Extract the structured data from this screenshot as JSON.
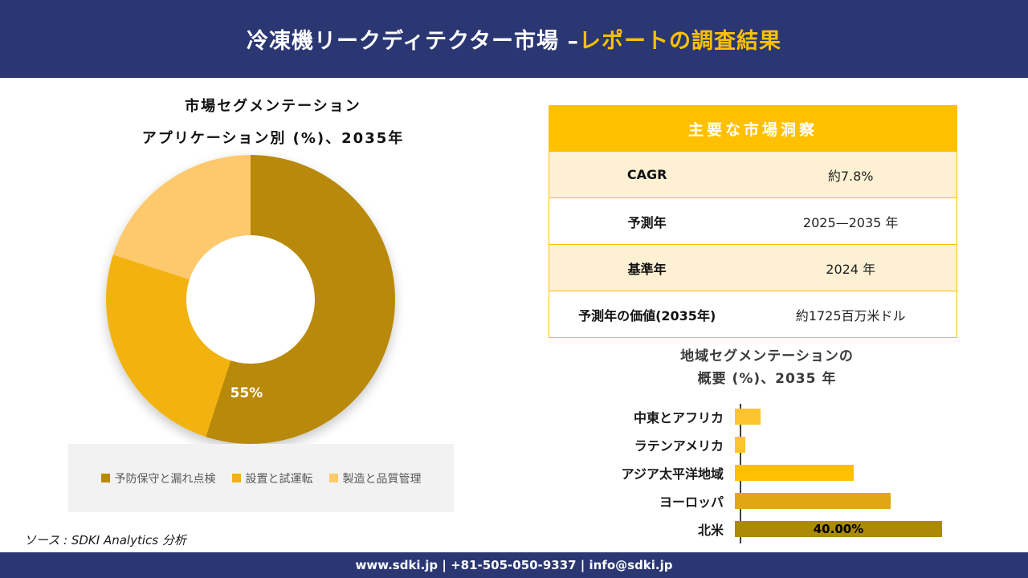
{
  "header": {
    "title_main": "冷凍機リークディテクター市場 –",
    "title_accent": "レポートの調査結果"
  },
  "colors": {
    "navy": "#2A3773",
    "gold": "#FFC000",
    "cream_row": "#FDF0D3",
    "donut_dark_gold": "#B8890A",
    "donut_amber": "#F2B311",
    "donut_light_gold": "#FDC96C",
    "axis_gray": "#404040"
  },
  "donut": {
    "title_line1": "市場セグメンテーション",
    "title_line2": "アプリケーション別 (%)、2035年",
    "center_label": "55%",
    "segments": [
      {
        "name": "予防保守と漏れ点検",
        "value": 55,
        "color": "#B8890A"
      },
      {
        "name": "設置と試運転",
        "value": 25,
        "color": "#F2B311"
      },
      {
        "name": "製造と品質管理",
        "value": 20,
        "color": "#FDC96C"
      }
    ]
  },
  "insights": {
    "header": "主要な市場洞察",
    "rows": [
      {
        "label": "CAGR",
        "value": "約7.8%"
      },
      {
        "label": "予測年",
        "value": "2025—2035 年"
      },
      {
        "label": "基準年",
        "value": "2024 年"
      },
      {
        "label": "予測年の価値(2035年)",
        "value": "約1725百万米ドル"
      }
    ]
  },
  "region_chart": {
    "title_line1": "地域セグメンテーションの",
    "title_line2": "概要 (%)、2035 年",
    "categories": [
      "中東とアフリカ",
      "ラテンアメリカ",
      "アジア太平洋地域",
      "ヨーロッパ",
      "北米"
    ],
    "values": [
      5,
      2,
      23,
      30,
      40
    ],
    "bar_colors": [
      "#FCC32C",
      "#FCC32C",
      "#FFC003",
      "#E0A714",
      "#AA8A07"
    ],
    "data_labels": [
      "",
      "",
      "",
      "",
      "40.00%"
    ]
  },
  "source": "ソース : SDKI Analytics 分析",
  "footer": "www.sdki.jp | +81-505-050-9337 | info@sdki.jp",
  "chart_data": [
    {
      "type": "pie",
      "donut": true,
      "title": "市場セグメンテーション アプリケーション別 (%)、2035年",
      "categories": [
        "予防保守と漏れ点検",
        "設置と試運転",
        "製造と品質管理"
      ],
      "values": [
        55,
        25,
        20
      ],
      "data_labels_shown": [
        "55%"
      ],
      "legend_position": "bottom",
      "start_angle_deg": 0,
      "direction": "clockwise"
    },
    {
      "type": "bar",
      "orientation": "horizontal",
      "title": "地域セグメンテーションの概要 (%)、2035 年",
      "categories": [
        "中東とアフリカ",
        "ラテンアメリカ",
        "アジア太平洋地域",
        "ヨーロッパ",
        "北米"
      ],
      "values": [
        5,
        2,
        23,
        30,
        40
      ],
      "data_labels": [
        "",
        "",
        "",
        "",
        "40.00%"
      ],
      "xlim": [
        0,
        45
      ],
      "grid": false,
      "legend_position": "none"
    }
  ]
}
